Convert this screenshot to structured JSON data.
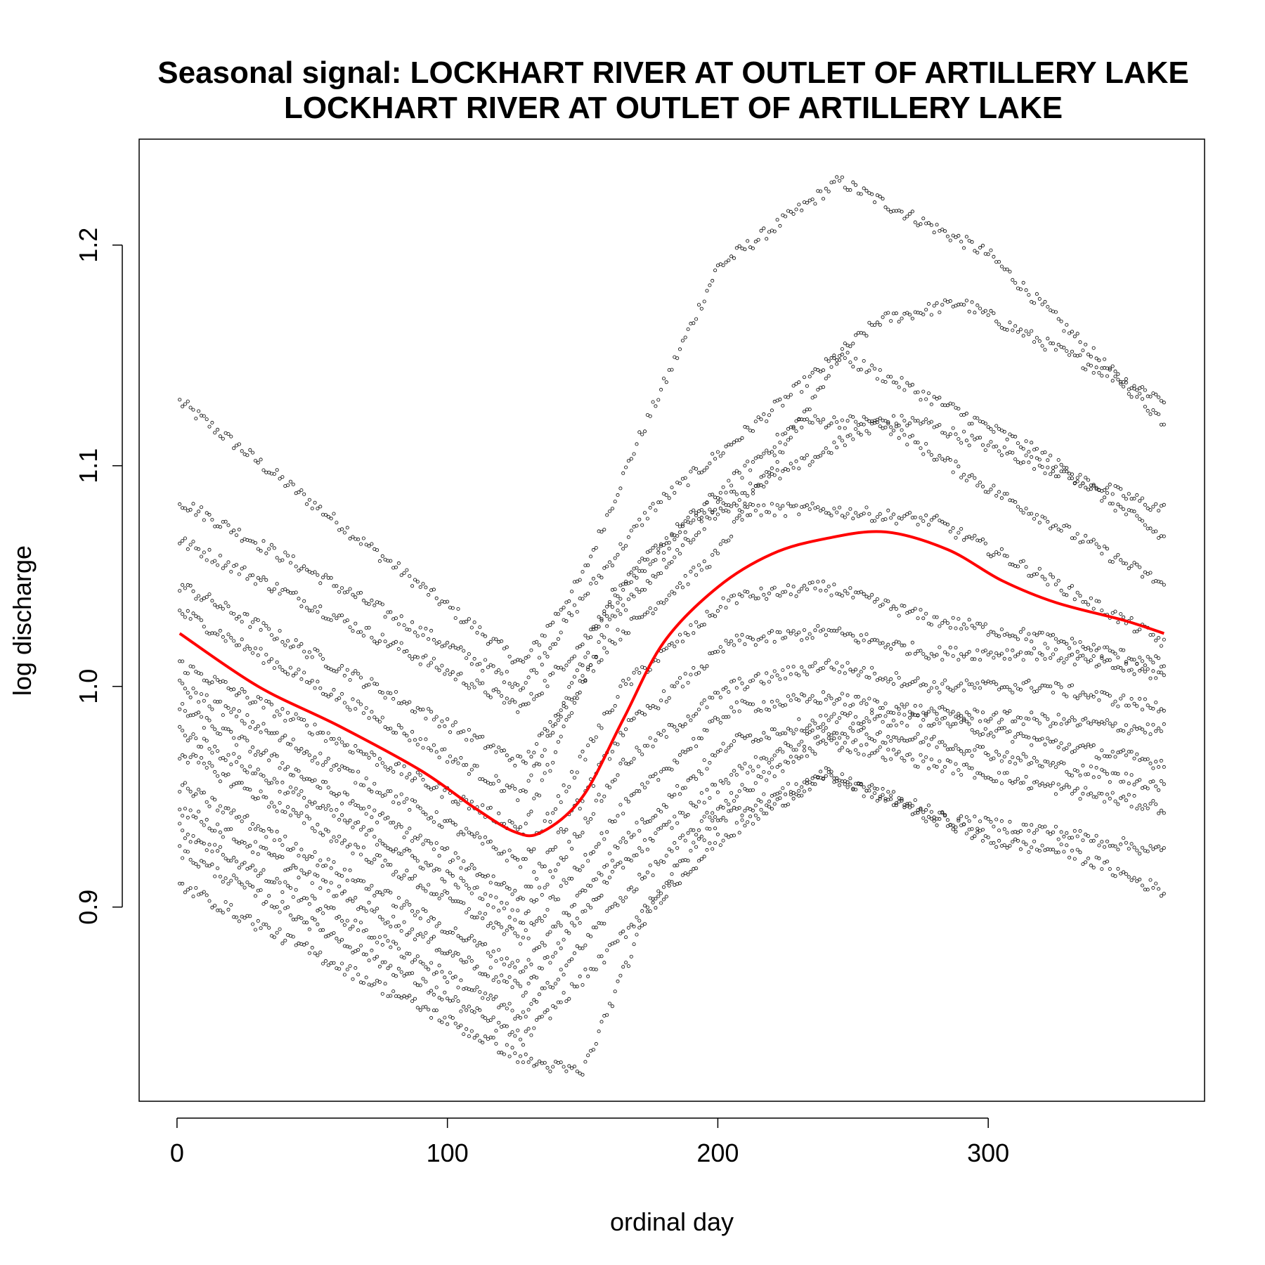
{
  "chart_data": {
    "type": "scatter",
    "title": "Seasonal signal: LOCKHART RIVER AT OUTLET OF ARTILLERY LAKE",
    "subtitle": "LOCKHART RIVER AT OUTLET OF ARTILLERY LAKE",
    "xlabel": "ordinal day",
    "ylabel": "log discharge",
    "xlim": [
      -14,
      380
    ],
    "ylim": [
      0.812,
      1.248
    ],
    "xticks": [
      "0",
      "100",
      "200",
      "300"
    ],
    "yticks": [
      "0.9",
      "1.0",
      "1.1",
      "1.2"
    ],
    "grid": false,
    "marker": "open-circle",
    "point_color": "#000000",
    "smooth_color": "#ff0000",
    "year_series": [
      {
        "knots": [
          [
            1,
            1.129
          ],
          [
            128,
            1.01
          ],
          [
            150,
            1.05
          ],
          [
            170,
            1.11
          ],
          [
            200,
            1.19
          ],
          [
            245,
            1.229
          ],
          [
            300,
            1.196
          ],
          [
            365,
            1.12
          ]
        ]
      },
      {
        "knots": [
          [
            1,
            1.084
          ],
          [
            128,
            1.0
          ],
          [
            150,
            1.04
          ],
          [
            175,
            1.08
          ],
          [
            215,
            1.12
          ],
          [
            260,
            1.166
          ],
          [
            290,
            1.174
          ],
          [
            330,
            1.15
          ],
          [
            365,
            1.13
          ]
        ]
      },
      {
        "knots": [
          [
            1,
            1.066
          ],
          [
            128,
            0.99
          ],
          [
            150,
            1.02
          ],
          [
            175,
            1.06
          ],
          [
            230,
            1.12
          ],
          [
            275,
            1.12
          ],
          [
            320,
            1.1
          ],
          [
            365,
            1.08
          ]
        ]
      },
      {
        "knots": [
          [
            1,
            1.046
          ],
          [
            128,
            0.965
          ],
          [
            160,
            1.02
          ],
          [
            200,
            1.06
          ],
          [
            245,
            1.15
          ],
          [
            280,
            1.13
          ],
          [
            320,
            1.105
          ],
          [
            365,
            1.067
          ]
        ]
      },
      {
        "knots": [
          [
            1,
            1.034
          ],
          [
            128,
            0.95
          ],
          [
            160,
            1.04
          ],
          [
            195,
            1.08
          ],
          [
            230,
            1.1
          ],
          [
            260,
            1.12
          ],
          [
            300,
            1.09
          ],
          [
            365,
            1.046
          ]
        ]
      },
      {
        "knots": [
          [
            1,
            1.01
          ],
          [
            128,
            0.935
          ],
          [
            160,
            1.03
          ],
          [
            200,
            1.08
          ],
          [
            240,
            1.08
          ],
          [
            280,
            1.075
          ],
          [
            320,
            1.05
          ],
          [
            365,
            1.02
          ]
        ]
      },
      {
        "knots": [
          [
            1,
            1.0
          ],
          [
            128,
            0.92
          ],
          [
            165,
            1.0
          ],
          [
            205,
            1.04
          ],
          [
            240,
            1.045
          ],
          [
            280,
            1.03
          ],
          [
            320,
            1.022
          ],
          [
            365,
            1.01
          ]
        ]
      },
      {
        "knots": [
          [
            1,
            0.99
          ],
          [
            128,
            0.905
          ],
          [
            165,
            0.98
          ],
          [
            205,
            1.02
          ],
          [
            240,
            1.025
          ],
          [
            280,
            1.015
          ],
          [
            320,
            1.015
          ],
          [
            365,
            1.005
          ]
        ]
      },
      {
        "knots": [
          [
            1,
            0.98
          ],
          [
            128,
            0.895
          ],
          [
            165,
            0.965
          ],
          [
            205,
            1.0
          ],
          [
            240,
            1.01
          ],
          [
            280,
            1.0
          ],
          [
            320,
            1.0
          ],
          [
            365,
            0.99
          ]
        ]
      },
      {
        "knots": [
          [
            1,
            0.97
          ],
          [
            128,
            0.885
          ],
          [
            165,
            0.945
          ],
          [
            205,
            0.99
          ],
          [
            240,
            0.995
          ],
          [
            280,
            0.988
          ],
          [
            320,
            0.985
          ],
          [
            365,
            0.98
          ]
        ]
      },
      {
        "knots": [
          [
            1,
            0.955
          ],
          [
            128,
            0.872
          ],
          [
            165,
            0.93
          ],
          [
            205,
            0.975
          ],
          [
            240,
            0.985
          ],
          [
            280,
            0.985
          ],
          [
            320,
            0.975
          ],
          [
            365,
            0.965
          ]
        ]
      },
      {
        "knots": [
          [
            1,
            0.945
          ],
          [
            128,
            0.862
          ],
          [
            165,
            0.92
          ],
          [
            205,
            0.96
          ],
          [
            240,
            0.98
          ],
          [
            280,
            0.975
          ],
          [
            320,
            0.965
          ],
          [
            365,
            0.955
          ]
        ]
      },
      {
        "knots": [
          [
            1,
            0.935
          ],
          [
            128,
            0.85
          ],
          [
            165,
            0.905
          ],
          [
            205,
            0.95
          ],
          [
            240,
            0.975
          ],
          [
            280,
            0.965
          ],
          [
            320,
            0.955
          ],
          [
            365,
            0.945
          ]
        ]
      },
      {
        "knots": [
          [
            1,
            0.925
          ],
          [
            128,
            0.84
          ],
          [
            160,
            0.88
          ],
          [
            200,
            0.94
          ],
          [
            240,
            0.96
          ],
          [
            280,
            0.94
          ],
          [
            320,
            0.935
          ],
          [
            365,
            0.925
          ]
        ]
      },
      {
        "knots": [
          [
            1,
            0.91
          ],
          [
            130,
            0.83
          ],
          [
            150,
            0.825
          ],
          [
            175,
            0.9
          ],
          [
            200,
            0.93
          ],
          [
            240,
            0.96
          ],
          [
            275,
            0.945
          ],
          [
            300,
            0.93
          ],
          [
            330,
            0.925
          ],
          [
            365,
            0.907
          ]
        ]
      }
    ],
    "smooth_series": {
      "name": "",
      "points": [
        [
          1,
          1.024
        ],
        [
          30,
          1.0
        ],
        [
          60,
          0.982
        ],
        [
          90,
          0.962
        ],
        [
          110,
          0.945
        ],
        [
          125,
          0.934
        ],
        [
          135,
          0.934
        ],
        [
          150,
          0.95
        ],
        [
          165,
          0.985
        ],
        [
          180,
          1.02
        ],
        [
          200,
          1.045
        ],
        [
          220,
          1.06
        ],
        [
          240,
          1.067
        ],
        [
          262,
          1.07
        ],
        [
          285,
          1.062
        ],
        [
          305,
          1.048
        ],
        [
          325,
          1.038
        ],
        [
          350,
          1.03
        ],
        [
          365,
          1.024
        ]
      ]
    }
  }
}
